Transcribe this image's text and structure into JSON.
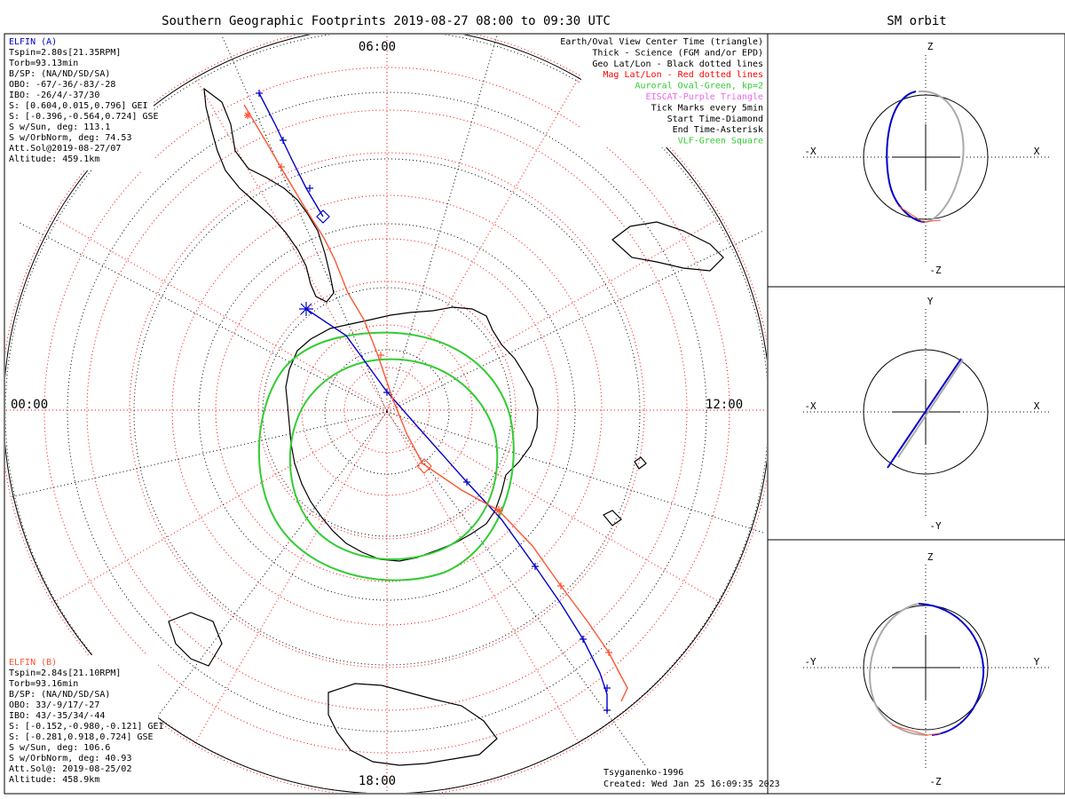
{
  "title": "Southern Geographic Footprints 2019-08-27 08:00 to 09:30 UTC",
  "sm_title": "SM orbit",
  "mlt_labels": {
    "top": "06:00",
    "bottom": "18:00",
    "left": "00:00",
    "right": "12:00"
  },
  "elfin_a": {
    "header": "ELFIN (A)",
    "lines": [
      "Tspin=2.80s[21.35RPM]",
      "Torb=93.13min",
      "B/SP: (NA/ND/SD/SA)",
      "OBO: -67/-36/-83/-28",
      "IBO: -26/4/-37/30",
      "S: [0.604,0.015,0.796] GEI",
      "S: [-0.396,-0.564,0.724] GSE",
      "S w/Sun, deg: 113.1",
      "S w/OrbNorm, deg: 74.53",
      "Att.Sol@2019-08-27/07",
      "Altitude: 459.1km"
    ]
  },
  "elfin_b": {
    "header": "ELFIN (B)",
    "lines": [
      "Tspin=2.84s[21.10RPM]",
      "Torb=93.16min",
      "B/SP: (NA/ND/SD/SA)",
      "OBO: 33/-9/17/-27",
      "IBO: 43/-35/34/-44",
      "S: [-0.152,-0.980,-0.121] GEI",
      "S: [-0.281,0.918,0.724] GSE",
      "S w/Sun, deg: 106.6",
      "S w/OrbNorm, deg: 40.93",
      "Att.Sol@: 2019-08-25/02",
      "Altitude: 458.9km"
    ]
  },
  "legend": [
    {
      "text": "Earth/Oval View Center Time (triangle)",
      "color": "#000000"
    },
    {
      "text": "Thick - Science (FGM and/or EPD)",
      "color": "#000000"
    },
    {
      "text": "Geo Lat/Lon - Black dotted lines",
      "color": "#000000"
    },
    {
      "text": "Mag Lat/Lon - Red dotted lines",
      "color": "#ff0000"
    },
    {
      "text": "Auroral Oval-Green, kp=2",
      "color": "#33cc33"
    },
    {
      "text": "EISCAT-Purple Triangle",
      "color": "#ee66ee"
    },
    {
      "text": "Tick Marks every 5min",
      "color": "#000000"
    },
    {
      "text": "Start Time-Diamond",
      "color": "#000000"
    },
    {
      "text": "End Time-Asterisk",
      "color": "#000000"
    },
    {
      "text": "VLF-Green Square",
      "color": "#33cc33"
    }
  ],
  "footer": {
    "model": "Tsyganenko-1996",
    "created": "Created: Wed Jan 25 16:09:35 2023"
  },
  "panels": [
    {
      "top": "Z",
      "bottom": "-Z",
      "left": "-X",
      "right": "X"
    },
    {
      "top": "Y",
      "bottom": "-Y",
      "left": "-X",
      "right": "X"
    },
    {
      "top": "Z",
      "bottom": "-Z",
      "left": "-Y",
      "right": "Y"
    }
  ],
  "colors": {
    "elfin_a": "#0000cc",
    "elfin_b": "#ff5533",
    "oval": "#33cc33",
    "mag_grid": "#ff0000",
    "geo_grid": "#000000",
    "sm_orbit": "#aaaaaa"
  }
}
